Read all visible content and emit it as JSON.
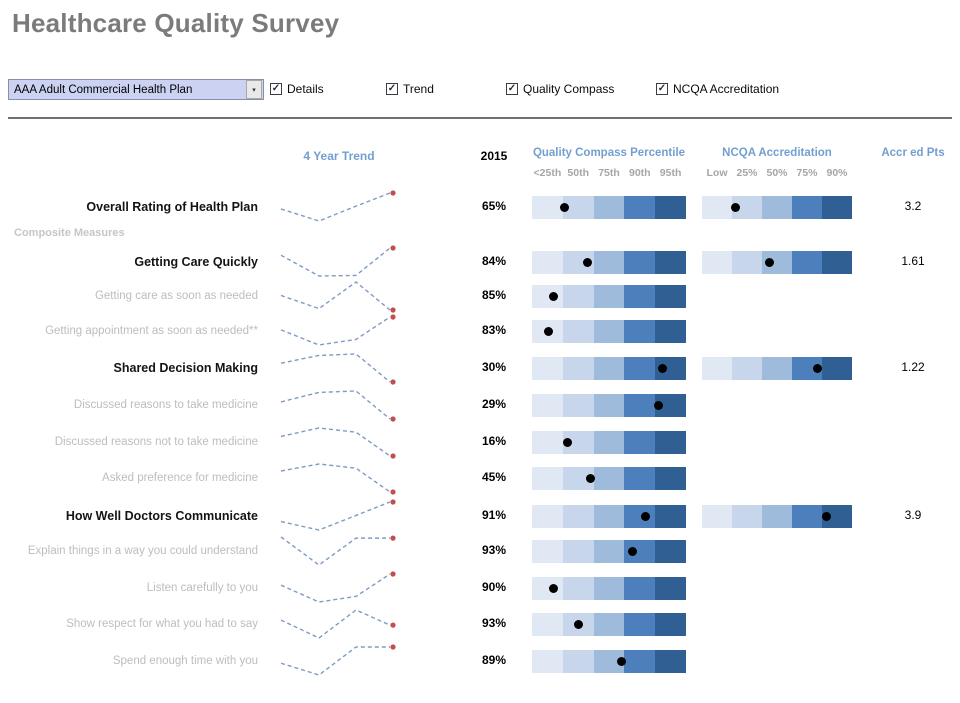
{
  "title": "Healthcare Quality Survey",
  "controls": {
    "plan_selector": {
      "value": "AAA Adult Commercial Health Plan"
    },
    "checkboxes": [
      {
        "label": "Details",
        "checked": true
      },
      {
        "label": "Trend",
        "checked": true
      },
      {
        "label": "Quality Compass",
        "checked": true
      },
      {
        "label": "NCQA Accreditation",
        "checked": true
      }
    ]
  },
  "columns": {
    "trend": "4 Year Trend",
    "year": "2015",
    "quality_compass": "Quality Compass Percentile",
    "qc_ticks": [
      "<25th",
      "50th",
      "75th",
      "90th",
      "95th"
    ],
    "ncqa": "NCQA Accreditation",
    "ncqa_ticks": [
      "Low",
      "25%",
      "50%",
      "75%",
      "90%"
    ],
    "accred": "Accr ed Pts"
  },
  "section_label": "Composite Measures",
  "colors": {
    "title_gray": "#7b7b7b",
    "header_blue": "#739fd0",
    "tick_gray": "#a6a6a6",
    "sub_label_gray": "#bdbdbd",
    "bar_segments": [
      "#dfe8f3",
      "#c7d6ea",
      "#9fbbdc",
      "#4d7fbc",
      "#2f5f93"
    ],
    "trend_line": "#7e9bc4",
    "trend_endpoint": "#c0504d",
    "dot_black": "#000000",
    "dropdown_bg": "#ccd3f2"
  },
  "chart_data": {
    "type": "table",
    "title": "Healthcare Quality Survey",
    "columns": [
      "Measure",
      "4 Year Trend",
      "2015",
      "Quality Compass Percentile",
      "NCQA Accreditation",
      "Accr ed Pts"
    ],
    "qc_axis": [
      "<25th",
      "50th",
      "75th",
      "90th",
      "95th"
    ],
    "ncqa_axis": [
      "Low",
      "25%",
      "50%",
      "75%",
      "90%"
    ],
    "rows": [
      {
        "label": "Overall Rating of Health Plan",
        "level": "main",
        "pct": "65%",
        "trend": [
          0.43,
          0,
          0.53,
          1
        ],
        "qc_dot": 0.21,
        "ncqa_dot": 0.22,
        "accred_pts": "3.2"
      },
      {
        "label": "Getting Care Quickly",
        "level": "main",
        "section_before": "Composite Measures",
        "pct": "84%",
        "trend": [
          0.74,
          0,
          0.02,
          1
        ],
        "qc_dot": 0.36,
        "ncqa_dot": 0.45,
        "accred_pts": "1.61"
      },
      {
        "label": "Getting care as soon as needed",
        "level": "sub",
        "pct": "85%",
        "trend": [
          0.52,
          0.05,
          1,
          0
        ],
        "qc_dot": 0.14,
        "ncqa_dot": null,
        "accred_pts": null
      },
      {
        "label": "Getting appointment as soon as needed**",
        "level": "sub",
        "pct": "83%",
        "trend": [
          0.54,
          0,
          0.2,
          1
        ],
        "qc_dot": 0.11,
        "ncqa_dot": null,
        "accred_pts": null
      },
      {
        "label": "Shared Decision Making",
        "level": "main",
        "pct": "30%",
        "trend": [
          0.67,
          0.95,
          1,
          0
        ],
        "qc_dot": 0.85,
        "ncqa_dot": 0.77,
        "accred_pts": "1.22"
      },
      {
        "label": "Discussed reasons to take medicine",
        "level": "sub",
        "pct": "29%",
        "trend": [
          0.61,
          0.95,
          1,
          0
        ],
        "qc_dot": 0.82,
        "ncqa_dot": null,
        "accred_pts": null
      },
      {
        "label": "Discussed reasons not to take medicine",
        "level": "sub",
        "pct": "16%",
        "trend": [
          0.7,
          1,
          0.85,
          0
        ],
        "qc_dot": 0.23,
        "ncqa_dot": null,
        "accred_pts": null
      },
      {
        "label": "Asked preference for medicine",
        "level": "sub",
        "pct": "45%",
        "trend": [
          0.75,
          1,
          0.85,
          0
        ],
        "qc_dot": 0.38,
        "ncqa_dot": null,
        "accred_pts": null
      },
      {
        "label": "How Well Doctors Communicate",
        "level": "main",
        "pct": "91%",
        "trend": [
          0.3,
          0,
          0.52,
          1
        ],
        "qc_dot": 0.74,
        "ncqa_dot": 0.83,
        "accred_pts": "3.9"
      },
      {
        "label": "Explain things in a way you could understand",
        "level": "sub",
        "pct": "93%",
        "trend": [
          1,
          0,
          0.96,
          0.96
        ],
        "qc_dot": 0.65,
        "ncqa_dot": null,
        "accred_pts": null
      },
      {
        "label": "Listen carefully to you",
        "level": "sub",
        "pct": "90%",
        "trend": [
          0.6,
          0,
          0.2,
          1
        ],
        "qc_dot": 0.14,
        "ncqa_dot": null,
        "accred_pts": null
      },
      {
        "label": "Show respect for what you had to say",
        "level": "sub",
        "pct": "93%",
        "trend": [
          0.64,
          0,
          1,
          0.46
        ],
        "qc_dot": 0.3,
        "ncqa_dot": null,
        "accred_pts": null
      },
      {
        "label": "Spend enough time with you",
        "level": "sub",
        "pct": "89%",
        "trend": [
          0.42,
          0,
          1,
          1
        ],
        "qc_dot": 0.58,
        "ncqa_dot": null,
        "accred_pts": null
      }
    ]
  }
}
